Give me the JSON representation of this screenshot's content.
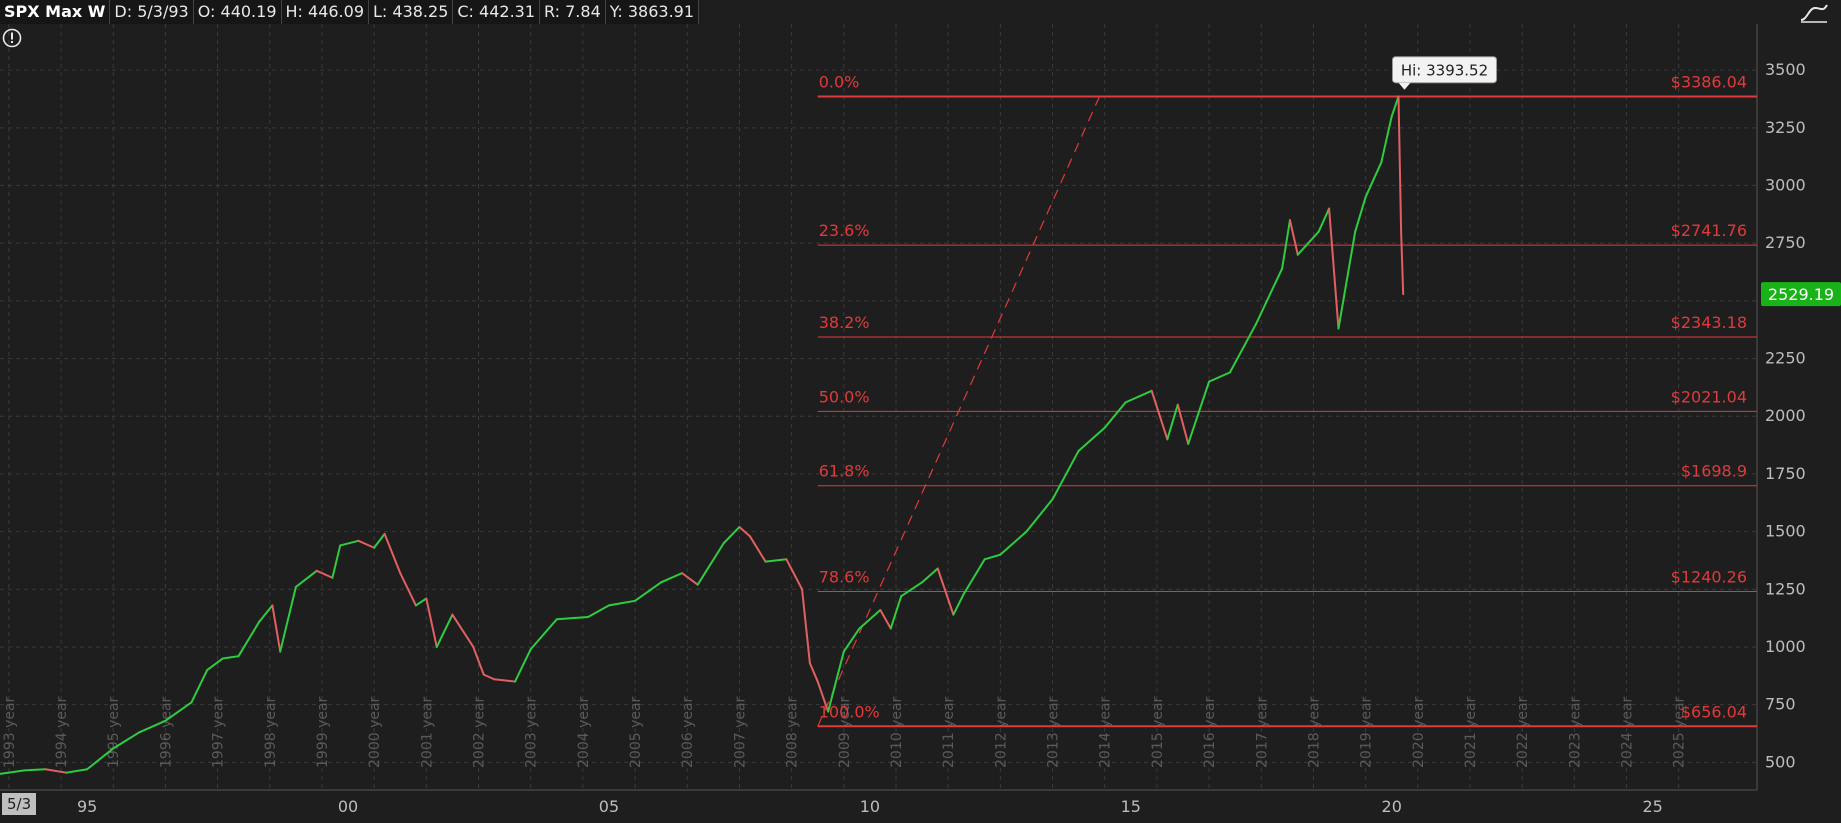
{
  "header": {
    "symbol": "SPX Max W",
    "date": "D: 5/3/93",
    "open": "O: 440.19",
    "high": "H: 446.09",
    "low": "L: 438.25",
    "close": "C: 442.31",
    "range": "R: 7.84",
    "year_range": "Y: 3863.91"
  },
  "corner_date": "5/3",
  "colors": {
    "background": "#1e1e1e",
    "up": "#2ecc40",
    "down": "#e26060",
    "fib": "#e03a3a",
    "price_tag": "#19b319"
  },
  "icons": [
    "warning-icon",
    "chart-style-icon"
  ],
  "chart_data": {
    "type": "line",
    "title": "",
    "xlabel": "",
    "ylabel": "",
    "x_range": [
      1993.33,
      2027.0
    ],
    "ylim": [
      380,
      3700
    ],
    "grid": true,
    "y_ticks": [
      500,
      750,
      1000,
      1250,
      1500,
      1750,
      2000,
      2250,
      2500,
      2750,
      3000,
      3250,
      3500
    ],
    "y_tick_labels": [
      "500",
      "750",
      "1000",
      "1250",
      "1500",
      "1750",
      "2000",
      "2250",
      "2500",
      "2750",
      "3000",
      "3250",
      "3500"
    ],
    "x_major_ticks": [
      {
        "x": 1995,
        "label": "95"
      },
      {
        "x": 2000,
        "label": "00"
      },
      {
        "x": 2005,
        "label": "05"
      },
      {
        "x": 2010,
        "label": "10"
      },
      {
        "x": 2015,
        "label": "15"
      },
      {
        "x": 2020,
        "label": "20"
      },
      {
        "x": 2025,
        "label": "25"
      }
    ],
    "year_markers": [
      {
        "x": 1993.5,
        "label": "1993 year"
      },
      {
        "x": 1994.5,
        "label": "1994 year"
      },
      {
        "x": 1995.5,
        "label": "1995 year"
      },
      {
        "x": 1996.5,
        "label": "1996 year"
      },
      {
        "x": 1997.5,
        "label": "1997 year"
      },
      {
        "x": 1998.5,
        "label": "1998 year"
      },
      {
        "x": 1999.5,
        "label": "1999 year"
      },
      {
        "x": 2000.5,
        "label": "2000 year"
      },
      {
        "x": 2001.5,
        "label": "2001 year"
      },
      {
        "x": 2002.5,
        "label": "2002 year"
      },
      {
        "x": 2003.5,
        "label": "2003 year"
      },
      {
        "x": 2004.5,
        "label": "2004 year"
      },
      {
        "x": 2005.5,
        "label": "2005 year"
      },
      {
        "x": 2006.5,
        "label": "2006 year"
      },
      {
        "x": 2007.5,
        "label": "2007 year"
      },
      {
        "x": 2008.5,
        "label": "2008 year"
      },
      {
        "x": 2009.5,
        "label": "2009 year"
      },
      {
        "x": 2010.5,
        "label": "2010 year"
      },
      {
        "x": 2011.5,
        "label": "2011 year"
      },
      {
        "x": 2012.5,
        "label": "2012 year"
      },
      {
        "x": 2013.5,
        "label": "2013 year"
      },
      {
        "x": 2014.5,
        "label": "2014 year"
      },
      {
        "x": 2015.5,
        "label": "2015 year"
      },
      {
        "x": 2016.5,
        "label": "2016 year"
      },
      {
        "x": 2017.5,
        "label": "2017 year"
      },
      {
        "x": 2018.5,
        "label": "2018 year"
      },
      {
        "x": 2019.5,
        "label": "2019 year"
      },
      {
        "x": 2020.5,
        "label": "2020 year"
      },
      {
        "x": 2021.5,
        "label": "2021 year"
      },
      {
        "x": 2022.5,
        "label": "2022 year"
      },
      {
        "x": 2023.5,
        "label": "2023 year"
      },
      {
        "x": 2024.5,
        "label": "2024 year"
      },
      {
        "x": 2025.5,
        "label": "2025 year"
      }
    ],
    "series": [
      {
        "x": [
          1993.33,
          1993.8,
          1994.2,
          1994.6,
          1995.0,
          1995.5,
          1996.0,
          1996.5,
          1997.0,
          1997.3,
          1997.6,
          1997.9,
          1998.3,
          1998.55,
          1998.7,
          1999.0,
          1999.4,
          1999.7,
          1999.85,
          2000.2,
          2000.5,
          2000.7,
          2001.0,
          2001.3,
          2001.5,
          2001.7,
          2002.0,
          2002.4,
          2002.6,
          2002.8,
          2003.2,
          2003.5,
          2004.0,
          2004.6,
          2005.0,
          2005.5,
          2006.0,
          2006.4,
          2006.7,
          2007.2,
          2007.5,
          2007.7,
          2008.0,
          2008.4,
          2008.7,
          2008.85,
          2009.0,
          2009.2,
          2009.5,
          2009.8,
          2010.2,
          2010.4,
          2010.6,
          2011.0,
          2011.3,
          2011.6,
          2011.8,
          2012.2,
          2012.5,
          2013.0,
          2013.5,
          2014.0,
          2014.5,
          2014.9,
          2015.4,
          2015.7,
          2015.9,
          2016.1,
          2016.5,
          2016.9,
          2017.4,
          2017.9,
          2018.05,
          2018.2,
          2018.6,
          2018.8,
          2018.98,
          2019.3,
          2019.5,
          2019.8,
          2020.0,
          2020.13,
          2020.18,
          2020.22
        ],
        "y": [
          450,
          465,
          470,
          455,
          470,
          560,
          630,
          680,
          760,
          900,
          950,
          960,
          1110,
          1180,
          980,
          1260,
          1330,
          1300,
          1440,
          1460,
          1430,
          1490,
          1320,
          1180,
          1210,
          1000,
          1140,
          1000,
          880,
          860,
          850,
          990,
          1120,
          1130,
          1180,
          1200,
          1280,
          1320,
          1270,
          1450,
          1520,
          1480,
          1370,
          1380,
          1250,
          930,
          850,
          720,
          980,
          1080,
          1160,
          1080,
          1220,
          1280,
          1340,
          1140,
          1230,
          1380,
          1400,
          1500,
          1640,
          1850,
          1950,
          2060,
          2110,
          1900,
          2050,
          1880,
          2150,
          2190,
          2400,
          2640,
          2850,
          2700,
          2800,
          2900,
          2380,
          2800,
          2950,
          3100,
          3300,
          3386.04,
          2800,
          2529.19
        ]
      }
    ],
    "fib_levels": [
      {
        "pct": "0.0%",
        "price": 3386.04,
        "label": "$3386.04"
      },
      {
        "pct": "23.6%",
        "price": 2741.76,
        "label": "$2741.76"
      },
      {
        "pct": "38.2%",
        "price": 2343.18,
        "label": "$2343.18"
      },
      {
        "pct": "50.0%",
        "price": 2021.04,
        "label": "$2021.04"
      },
      {
        "pct": "61.8%",
        "price": 1698.9,
        "label": "$1698.9"
      },
      {
        "pct": "78.6%",
        "price": 1240.26,
        "label": "$1240.26"
      },
      {
        "pct": "100.0%",
        "price": 656.04,
        "label": "$656.04"
      }
    ],
    "fib_start_x": 2009.0,
    "trend_line": {
      "x1": 2009.0,
      "y1": 656.04,
      "x2": 2014.4,
      "y2": 3386.04
    },
    "hi_label": {
      "text": "Hi: 3393.52",
      "x": 2020.13,
      "y": 3393.52
    },
    "last_price": {
      "value": 2529.19,
      "label": "2529.19"
    }
  }
}
